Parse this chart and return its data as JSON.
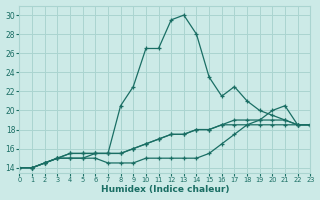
{
  "title": "",
  "xlabel": "Humidex (Indice chaleur)",
  "background_color": "#cceae7",
  "grid_color": "#aad4d0",
  "line_color": "#1a6e64",
  "xlim": [
    0,
    23
  ],
  "ylim": [
    13.5,
    31
  ],
  "xticks": [
    0,
    1,
    2,
    3,
    4,
    5,
    6,
    7,
    8,
    9,
    10,
    11,
    12,
    13,
    14,
    15,
    16,
    17,
    18,
    19,
    20,
    21,
    22,
    23
  ],
  "yticks": [
    14,
    16,
    18,
    20,
    22,
    24,
    26,
    28,
    30
  ],
  "series": [
    [
      14,
      14,
      14.5,
      15,
      15,
      15,
      15,
      14.5,
      14.5,
      14.5,
      15,
      15,
      15,
      15,
      15,
      15.5,
      16.5,
      17.5,
      18.5,
      19,
      20,
      20.5,
      18.5,
      18.5
    ],
    [
      14,
      14,
      14.5,
      15,
      15,
      15,
      15.5,
      15.5,
      15.5,
      16,
      16.5,
      17,
      17.5,
      17.5,
      18,
      18,
      18.5,
      18.5,
      18.5,
      18.5,
      18.5,
      18.5,
      18.5,
      18.5
    ],
    [
      14,
      14,
      14.5,
      15,
      15.5,
      15.5,
      15.5,
      15.5,
      15.5,
      16,
      16.5,
      17,
      17.5,
      17.5,
      18,
      18,
      18.5,
      19,
      19,
      19,
      19,
      19,
      18.5,
      18.5
    ],
    [
      14,
      14,
      14.5,
      15,
      15.5,
      15.5,
      15.5,
      15.5,
      20.5,
      22.5,
      26.5,
      26.5,
      29.5,
      30,
      28,
      23.5,
      21.5,
      22.5,
      21,
      20,
      19.5,
      19,
      18.5,
      18.5
    ]
  ]
}
